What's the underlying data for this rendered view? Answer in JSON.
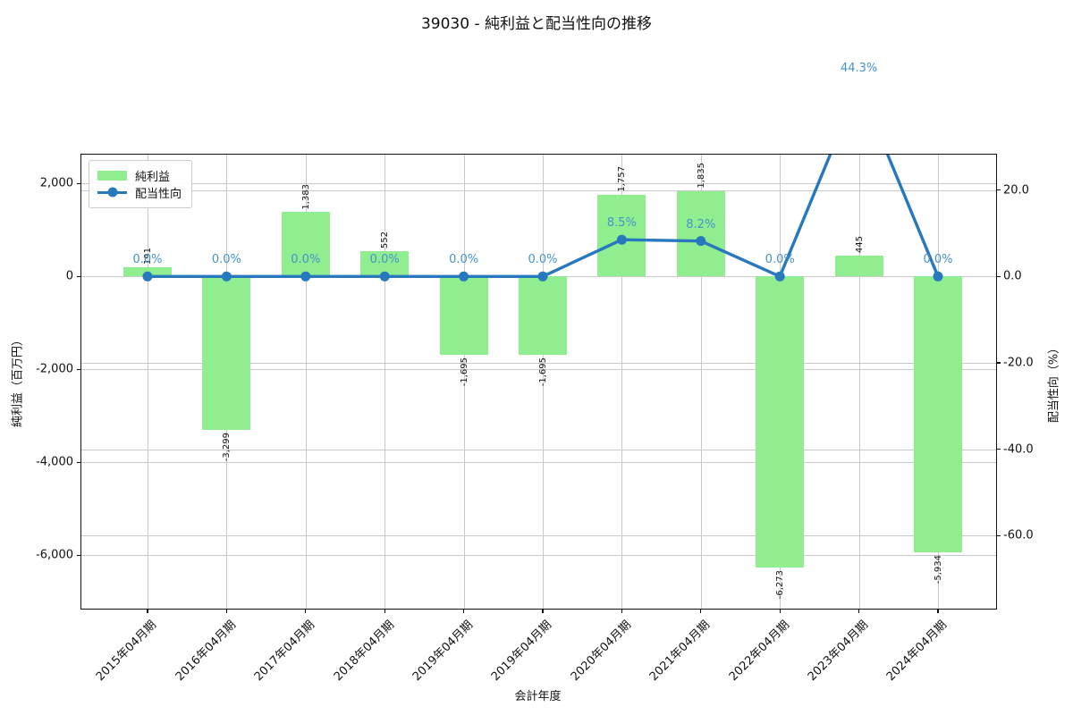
{
  "title": "39030 - 純利益と配当性向の推移",
  "chart_data": {
    "type": "bar+line",
    "categories": [
      "2015年04月期",
      "2016年04月期",
      "2017年04月期",
      "2018年04月期",
      "2019年04月期",
      "2019年04月期",
      "2020年04月期",
      "2021年04月期",
      "2022年04月期",
      "2023年04月期",
      "2024年04月期"
    ],
    "series": [
      {
        "name": "純利益",
        "type": "bar",
        "axis": "left",
        "unit": "百万円",
        "values": [
          191,
          -3299,
          1383,
          552,
          -1695,
          -1695,
          1757,
          1835,
          -6273,
          445,
          -5934
        ],
        "value_labels": [
          "191",
          "-3,299",
          "1,383",
          "552",
          "-1,695",
          "-1,695",
          "1,757",
          "1,835",
          "-6,273",
          "445",
          "-5,934"
        ],
        "color": "#90ee90"
      },
      {
        "name": "配当性向",
        "type": "line",
        "axis": "right",
        "unit": "%",
        "marker": "circle",
        "values": [
          0.0,
          0.0,
          0.0,
          0.0,
          0.0,
          0.0,
          8.5,
          8.2,
          0.0,
          44.3,
          0.0
        ],
        "value_labels": [
          "0.0%",
          "0.0%",
          "0.0%",
          "0.0%",
          "0.0%",
          "0.0%",
          "8.5%",
          "8.2%",
          "0.0%",
          "44.3%",
          "0.0%"
        ],
        "color": "#2878be",
        "label_color": "#4593cc"
      }
    ],
    "xlabel": "会計年度",
    "ylabel_left": "純利益（百万円）",
    "ylabel_right": "配当性向（%）",
    "left_axis": {
      "ticks": [
        2000,
        0,
        -2000,
        -4000,
        -6000
      ],
      "tick_labels": [
        "2,000",
        "0",
        "-2,000",
        "-4,000",
        "-6,000"
      ],
      "lim": [
        -7148,
        2621
      ]
    },
    "right_axis": {
      "ticks": [
        20,
        0,
        -20,
        -40,
        -60
      ],
      "tick_labels": [
        "20.0",
        "0.0",
        "-20.0",
        "-40.0",
        "-60.0"
      ],
      "lim": [
        -76.9,
        28.2
      ]
    },
    "grid": true,
    "legend": {
      "position": "upper left",
      "entries": [
        "純利益",
        "配当性向"
      ]
    },
    "colors": {
      "bar": "#90ee90",
      "line": "#2878be",
      "annotation": "#4593cc",
      "grid": "#c9c9c9"
    }
  }
}
